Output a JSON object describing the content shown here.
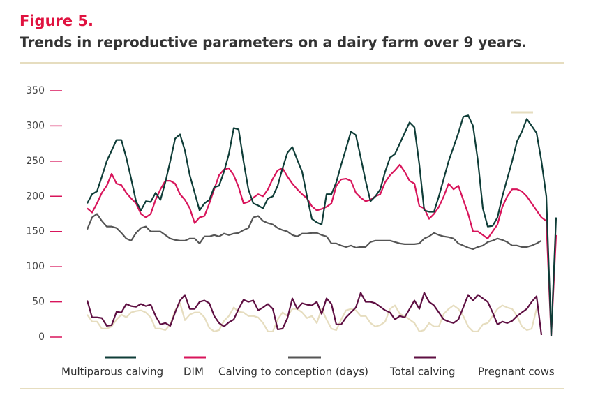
{
  "chart_data": {
    "type": "line",
    "title": "Figure 5.",
    "subtitle": "Trends in reproductive parameters on a dairy farm over 9 years.",
    "ylim": [
      0,
      350
    ],
    "yticks": [
      0,
      50,
      100,
      150,
      200,
      250,
      300,
      350
    ],
    "grid": false,
    "legend": "bottom",
    "series": [
      {
        "name": "Multiparous calving",
        "color": "#0f3d38",
        "values": [
          190,
          203,
          207,
          228,
          250,
          265,
          280,
          280,
          255,
          225,
          193,
          180,
          193,
          192,
          205,
          195,
          220,
          250,
          282,
          288,
          265,
          230,
          205,
          180,
          190,
          195,
          213,
          215,
          235,
          260,
          297,
          295,
          250,
          210,
          190,
          187,
          183,
          197,
          200,
          215,
          240,
          262,
          270,
          252,
          235,
          200,
          168,
          163,
          160,
          203,
          203,
          220,
          245,
          268,
          292,
          287,
          255,
          222,
          193,
          200,
          210,
          235,
          255,
          260,
          275,
          290,
          305,
          298,
          245,
          180,
          178,
          178,
          200,
          225,
          250,
          270,
          290,
          313,
          315,
          300,
          250,
          183,
          157,
          158,
          170,
          200,
          225,
          250,
          278,
          292,
          310,
          300,
          290,
          250,
          200,
          2,
          170
        ]
      },
      {
        "name": "DIM",
        "color": "#d8155b",
        "values": [
          183,
          177,
          190,
          205,
          215,
          232,
          218,
          216,
          205,
          197,
          190,
          175,
          170,
          175,
          195,
          210,
          222,
          222,
          218,
          203,
          195,
          183,
          162,
          170,
          172,
          190,
          210,
          230,
          238,
          240,
          230,
          213,
          190,
          192,
          198,
          203,
          200,
          210,
          225,
          237,
          240,
          228,
          218,
          210,
          203,
          197,
          186,
          180,
          182,
          185,
          190,
          215,
          224,
          225,
          222,
          205,
          198,
          193,
          195,
          200,
          203,
          220,
          230,
          237,
          245,
          235,
          222,
          218,
          186,
          183,
          168,
          175,
          185,
          200,
          218,
          210,
          215,
          195,
          175,
          150,
          150,
          145,
          140,
          150,
          160,
          185,
          200,
          210,
          210,
          207,
          200,
          190,
          180,
          170,
          165,
          2,
          145
        ]
      },
      {
        "name": "Calving to conception (days)",
        "color": "#555555",
        "values": [
          153,
          170,
          175,
          165,
          157,
          157,
          155,
          148,
          140,
          137,
          148,
          155,
          157,
          150,
          150,
          150,
          145,
          140,
          138,
          137,
          137,
          140,
          140,
          133,
          143,
          143,
          145,
          143,
          147,
          145,
          147,
          148,
          152,
          155,
          170,
          172,
          165,
          162,
          160,
          155,
          152,
          150,
          145,
          143,
          147,
          147,
          148,
          148,
          145,
          143,
          133,
          133,
          130,
          128,
          130,
          127,
          128,
          128,
          135,
          137,
          137,
          137,
          137,
          135,
          133,
          132,
          132,
          132,
          133,
          140,
          143,
          148,
          145,
          143,
          142,
          140,
          133,
          130,
          127,
          125,
          128,
          130,
          135,
          137,
          140,
          138,
          135,
          130,
          130,
          128,
          128,
          130,
          133,
          137,
          null,
          null,
          null
        ]
      },
      {
        "name": "Total calving",
        "color": "#5e0f42",
        "values": [
          52,
          28,
          28,
          27,
          16,
          17,
          36,
          35,
          47,
          44,
          43,
          47,
          44,
          46,
          30,
          18,
          20,
          16,
          35,
          52,
          60,
          40,
          40,
          50,
          52,
          48,
          30,
          20,
          15,
          21,
          25,
          40,
          53,
          50,
          52,
          38,
          42,
          47,
          40,
          11,
          12,
          27,
          55,
          40,
          48,
          46,
          45,
          50,
          33,
          55,
          47,
          18,
          18,
          28,
          35,
          42,
          63,
          50,
          50,
          48,
          43,
          38,
          35,
          25,
          30,
          28,
          40,
          52,
          40,
          63,
          50,
          45,
          35,
          25,
          22,
          20,
          25,
          42,
          60,
          52,
          60,
          55,
          50,
          35,
          18,
          22,
          20,
          23,
          30,
          35,
          40,
          50,
          58,
          3,
          null,
          null,
          null
        ]
      },
      {
        "name": "Pregnant cows",
        "color": "#e6ddbf",
        "values": [
          32,
          22,
          22,
          12,
          12,
          15,
          25,
          32,
          28,
          35,
          37,
          38,
          35,
          28,
          12,
          12,
          10,
          18,
          38,
          48,
          24,
          32,
          35,
          35,
          28,
          13,
          8,
          10,
          23,
          30,
          42,
          36,
          35,
          30,
          30,
          28,
          20,
          8,
          8,
          25,
          35,
          30,
          40,
          40,
          35,
          27,
          30,
          20,
          40,
          25,
          12,
          10,
          25,
          38,
          40,
          38,
          30,
          30,
          20,
          15,
          17,
          22,
          40,
          45,
          33,
          30,
          25,
          20,
          8,
          10,
          20,
          15,
          15,
          33,
          40,
          45,
          40,
          30,
          15,
          8,
          8,
          18,
          20,
          30,
          40,
          45,
          42,
          40,
          30,
          15,
          10,
          12,
          40,
          null,
          null,
          null,
          null
        ]
      }
    ]
  }
}
